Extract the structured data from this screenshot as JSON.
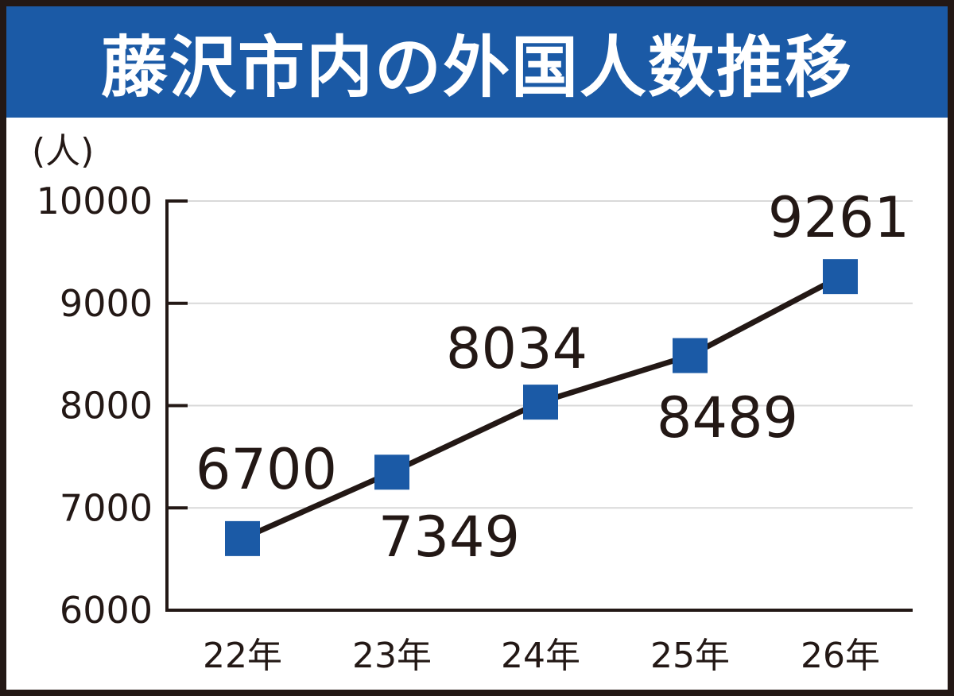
{
  "title": "藤沢市内の外国人数推移",
  "chart_data": {
    "type": "line",
    "title": "藤沢市内の外国人数推移",
    "ylabel": "(人)",
    "xlabel": "",
    "categories": [
      "22年",
      "23年",
      "24年",
      "25年",
      "26年"
    ],
    "values": [
      6700,
      7349,
      8034,
      8489,
      9261
    ],
    "data_labels": [
      "6700",
      "7349",
      "8034",
      "8489",
      "9261"
    ],
    "ylim": [
      6000,
      10000
    ],
    "yticks": [
      "6000",
      "7000",
      "8000",
      "9000",
      "10000"
    ],
    "grid": true,
    "marker": "square",
    "colors": {
      "marker": "#1b5aa6",
      "line": "#231815",
      "title_bg": "#1b5aa6"
    }
  }
}
